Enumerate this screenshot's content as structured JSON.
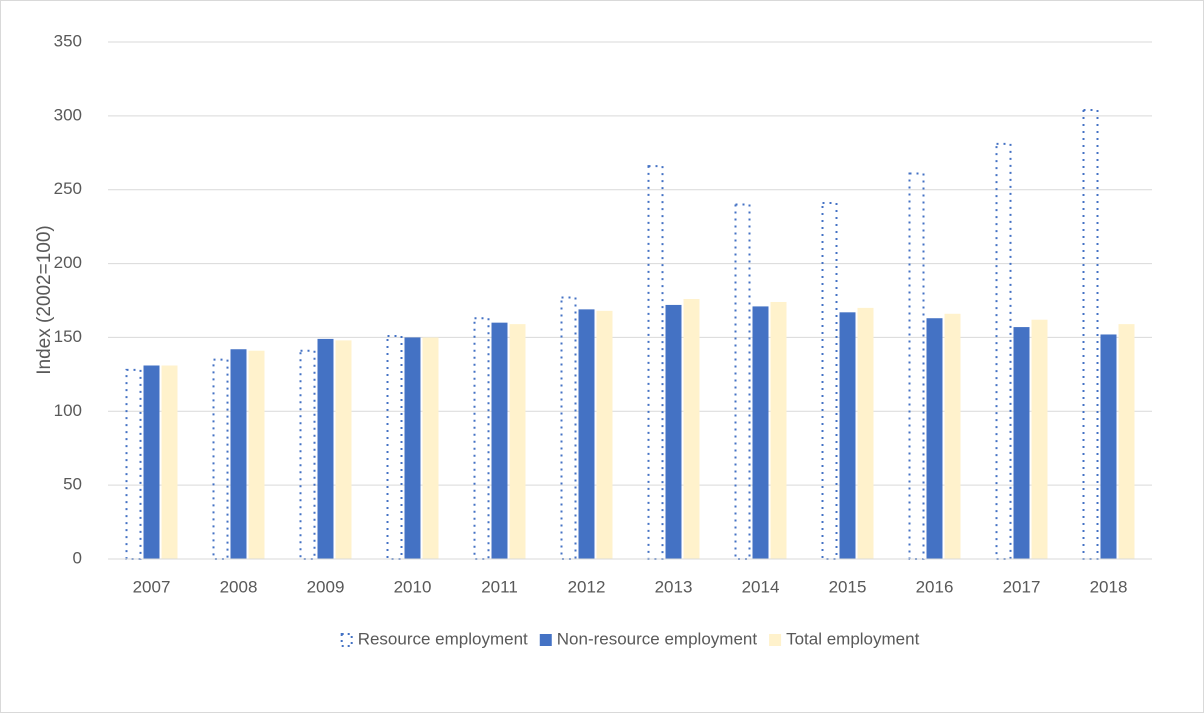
{
  "chart_data": {
    "type": "bar",
    "y_label": "Index (2002=100)",
    "categories": [
      "2007",
      "2008",
      "2009",
      "2010",
      "2011",
      "2012",
      "2013",
      "2014",
      "2015",
      "2016",
      "2017",
      "2018"
    ],
    "series": [
      {
        "name": "Resource employment",
        "color": "#4472c4",
        "pattern": "dotted",
        "values": [
          128,
          135,
          141,
          151,
          163,
          177,
          266,
          240,
          241,
          261,
          281,
          304
        ]
      },
      {
        "name": "Non-resource employment",
        "color": "#4472c4",
        "pattern": "solid",
        "values": [
          131,
          142,
          149,
          150,
          160,
          169,
          172,
          171,
          167,
          163,
          157,
          152
        ]
      },
      {
        "name": "Total employment",
        "color": "#fff2cc",
        "pattern": "solid",
        "values": [
          131,
          141,
          148,
          150,
          159,
          168,
          176,
          174,
          170,
          166,
          162,
          159
        ]
      }
    ],
    "ylim": [
      0,
      350
    ],
    "yticks": [
      0,
      50,
      100,
      150,
      200,
      250,
      300,
      350
    ],
    "grid": true,
    "legend": "bottom"
  }
}
